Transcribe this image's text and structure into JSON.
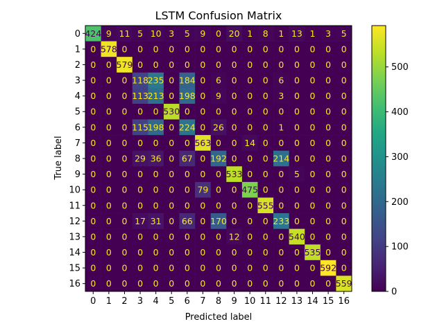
{
  "chart_data": {
    "type": "heatmap",
    "title": "LSTM Confusion Matrix",
    "xlabel": "Predicted label",
    "ylabel": "True label",
    "x_categories": [
      "0",
      "1",
      "2",
      "3",
      "4",
      "5",
      "6",
      "7",
      "8",
      "9",
      "10",
      "11",
      "12",
      "13",
      "14",
      "15",
      "16"
    ],
    "y_categories": [
      "0",
      "1",
      "2",
      "3",
      "4",
      "5",
      "6",
      "7",
      "8",
      "9",
      "10",
      "11",
      "12",
      "13",
      "14",
      "15",
      "16"
    ],
    "values": [
      [
        424,
        9,
        11,
        5,
        10,
        3,
        5,
        9,
        0,
        20,
        1,
        8,
        1,
        13,
        1,
        3,
        5
      ],
      [
        0,
        578,
        0,
        0,
        0,
        0,
        0,
        0,
        0,
        0,
        0,
        0,
        0,
        0,
        0,
        0,
        0
      ],
      [
        0,
        0,
        579,
        0,
        0,
        0,
        0,
        0,
        0,
        0,
        0,
        0,
        0,
        0,
        0,
        0,
        0
      ],
      [
        0,
        0,
        0,
        118,
        235,
        0,
        184,
        0,
        6,
        0,
        0,
        0,
        6,
        0,
        0,
        0,
        0
      ],
      [
        0,
        0,
        0,
        113,
        213,
        0,
        198,
        0,
        9,
        0,
        0,
        0,
        3,
        0,
        0,
        0,
        0
      ],
      [
        0,
        0,
        0,
        0,
        0,
        530,
        0,
        0,
        0,
        0,
        0,
        0,
        0,
        0,
        0,
        0,
        0
      ],
      [
        0,
        0,
        0,
        115,
        198,
        0,
        224,
        0,
        26,
        0,
        0,
        0,
        1,
        0,
        0,
        0,
        0
      ],
      [
        0,
        0,
        0,
        0,
        0,
        0,
        0,
        563,
        0,
        0,
        14,
        0,
        0,
        0,
        0,
        0,
        0
      ],
      [
        0,
        0,
        0,
        29,
        36,
        0,
        67,
        0,
        192,
        0,
        0,
        0,
        214,
        0,
        0,
        0,
        0
      ],
      [
        0,
        0,
        0,
        0,
        0,
        0,
        0,
        0,
        0,
        533,
        0,
        0,
        0,
        5,
        0,
        0,
        0
      ],
      [
        0,
        0,
        0,
        0,
        0,
        0,
        0,
        79,
        0,
        0,
        475,
        0,
        0,
        0,
        0,
        0,
        0
      ],
      [
        0,
        0,
        0,
        0,
        0,
        0,
        0,
        0,
        0,
        0,
        0,
        555,
        0,
        0,
        0,
        0,
        0
      ],
      [
        0,
        0,
        0,
        17,
        31,
        0,
        66,
        0,
        170,
        0,
        0,
        0,
        233,
        0,
        0,
        0,
        0
      ],
      [
        0,
        0,
        0,
        0,
        0,
        0,
        0,
        0,
        0,
        12,
        0,
        0,
        0,
        540,
        0,
        0,
        0
      ],
      [
        0,
        0,
        0,
        0,
        0,
        0,
        0,
        0,
        0,
        0,
        0,
        0,
        0,
        0,
        535,
        0,
        0
      ],
      [
        0,
        0,
        0,
        0,
        0,
        0,
        0,
        0,
        0,
        0,
        0,
        0,
        0,
        0,
        0,
        592,
        0
      ],
      [
        0,
        0,
        0,
        0,
        0,
        0,
        0,
        0,
        0,
        0,
        0,
        0,
        0,
        0,
        0,
        0,
        559
      ]
    ],
    "colormap": "viridis",
    "vmin": 0,
    "vmax": 592,
    "colorbar_ticks": [
      0,
      100,
      200,
      300,
      400,
      500
    ],
    "grid": false,
    "text_color_low": "#fde725",
    "text_color_high": "#440154"
  }
}
